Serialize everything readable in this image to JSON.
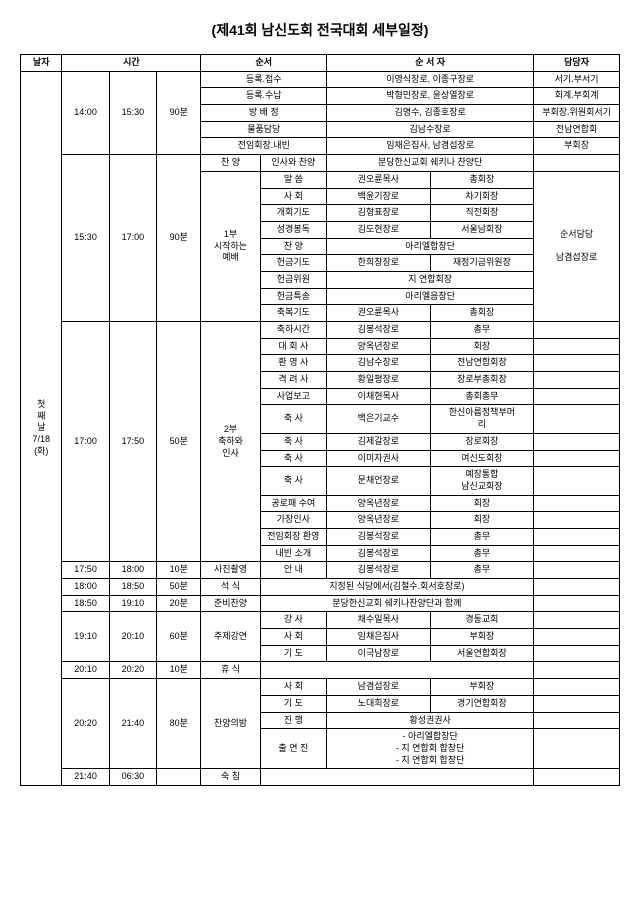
{
  "title": "(제41회 남신도회 전국대회 세부일정)",
  "headers": {
    "date": "날자",
    "time": "시간",
    "order": "순서",
    "presenter": "순 서 자",
    "manager": "담당자"
  },
  "day": "첫\n째\n날\n7/18\n(화)",
  "blocks": [
    {
      "t1": "14:00",
      "t2": "15:30",
      "t3": "90분",
      "rows": [
        {
          "ord2": "등록.접수",
          "p1": "이영식장로, 이종구장로",
          "mgr": "서기.부서기"
        },
        {
          "ord2": "등록.수납",
          "p1": "박형민장로, 윤상열장로",
          "mgr": "회계.부회계"
        },
        {
          "ord2": "방 배 정",
          "p1": "김명수, 김종호장로",
          "mgr": "부회장.위원회서기"
        },
        {
          "ord2": "물품담당",
          "p1": "김남수장로",
          "mgr": "전남연합회"
        },
        {
          "ord2": "전임회장.내빈",
          "p1": "임채은집사, 남겸섭장로",
          "mgr": "부회장"
        }
      ]
    },
    {
      "t1": "15:30",
      "t2": "17:00",
      "t3": "90분",
      "praise": {
        "ord1": "찬   양",
        "ord2": "인사와 찬양",
        "p1": "분당한신교회 쉐키나 찬양단"
      },
      "ord1": "1부\n시작하는\n예배",
      "rows": [
        {
          "ord2": "말    씀",
          "p1": "권오륜목사",
          "p2": "총회장"
        },
        {
          "ord2": "사    회",
          "p1": "백윤기장로",
          "p2": "차기회장"
        },
        {
          "ord2": "개회기도",
          "p1": "김형표장로",
          "p2": "직전회장"
        },
        {
          "ord2": "성경봉독",
          "p1": "김도현장로",
          "p2": "서울남회장"
        },
        {
          "ord2": "찬    양",
          "p1": "아리엘합창단",
          "p2": ""
        },
        {
          "ord2": "헌금기도",
          "p1": "한희창장로",
          "p2": "재정기금위원장"
        },
        {
          "ord2": "헌금위원",
          "p1": "지 연합회장",
          "p2": ""
        },
        {
          "ord2": "헌금특송",
          "p1": "아리엘음창단",
          "p2": ""
        },
        {
          "ord2": "축복기도",
          "p1": "권오륜목사",
          "p2": "총회장"
        }
      ],
      "mgr": "순서담당\n\n남겸섭장로"
    },
    {
      "t1": "17:00",
      "t2": "17:50",
      "t3": "50분",
      "ord1": "2부\n축하와\n인사",
      "rows": [
        {
          "ord2": "축하시간",
          "p1": "김봉석장로",
          "p2": "총무"
        },
        {
          "ord2": "대 회 사",
          "p1": "양옥년장로",
          "p2": "회장"
        },
        {
          "ord2": "환 영 사",
          "p1": "김남수장로",
          "p2": "전남연합회장"
        },
        {
          "ord2": "격 려 사",
          "p1": "황일평장로",
          "p2": "장로부총회장"
        },
        {
          "ord2": "사업보고",
          "p1": "이채현목사",
          "p2": "총회총무"
        },
        {
          "ord2": "축    사",
          "p1": "백은기교수",
          "p2": "한신아름정책부머\n리"
        },
        {
          "ord2": "축    사",
          "p1": "김제갈장로",
          "p2": "장로회장"
        },
        {
          "ord2": "축    사",
          "p1": "이미자권사",
          "p2": "여신도회장"
        },
        {
          "ord2": "축    사",
          "p1": "문채언장로",
          "p2": "예장통합\n남신교회장"
        },
        {
          "ord2": "공로패 수여",
          "p1": "양옥년장로",
          "p2": "회장"
        },
        {
          "ord2": "가장인사",
          "p1": "양옥년장로",
          "p2": "회장"
        },
        {
          "ord2": "전임회장 환영",
          "p1": "김봉석장로",
          "p2": "총무"
        },
        {
          "ord2": "내빈 소개",
          "p1": "김봉석장로",
          "p2": "총무"
        }
      ]
    },
    {
      "simple": true,
      "t1": "17:50",
      "t2": "18:00",
      "t3": "10분",
      "ord1": "사진촬영",
      "ord2": "안    내",
      "p1": "김봉석장로",
      "p2": "총무"
    },
    {
      "simple": true,
      "t1": "18:00",
      "t2": "18:50",
      "t3": "50분",
      "ord1": "석    식",
      "p1": "지정된 식당에서(김철수.회서호장로)"
    },
    {
      "simple": true,
      "t1": "18:50",
      "t2": "19:10",
      "t3": "20분",
      "ord1": "준비찬양",
      "p1": "분당한신교회 쉐키나찬양단과 함께"
    },
    {
      "t1": "19:10",
      "t2": "20:10",
      "t3": "60분",
      "ord1": "주제강연",
      "rows": [
        {
          "ord2": "강    사",
          "p1": "채수일목사",
          "p2": "경동교회"
        },
        {
          "ord2": "사    회",
          "p1": "임채은집사",
          "p2": "부회장"
        },
        {
          "ord2": "기    도",
          "p1": "이극남장로",
          "p2": "서울연합회장"
        }
      ]
    },
    {
      "simple": true,
      "t1": "20:10",
      "t2": "20:20",
      "t3": "10분",
      "ord1": "휴    식",
      "p1": ""
    },
    {
      "t1": "20:20",
      "t2": "21:40",
      "t3": "80분",
      "ord1": "찬양의밤",
      "rows": [
        {
          "ord2": "사    회",
          "p1": "남겸섭장로",
          "p2": "부회장"
        },
        {
          "ord2": "기    도",
          "p1": "노대희장로",
          "p2": "경기연합회장"
        },
        {
          "ord2": "진    행",
          "p1": "황성권권사",
          "p2": ""
        },
        {
          "ord2": "출 연 진",
          "p1": "- 아리엘합창단\n- 지 연합회 합창단\n- 지 연합회 합창단",
          "p2": ""
        }
      ]
    },
    {
      "simple": true,
      "t1": "21:40",
      "t2": "06:30",
      "t3": "",
      "ord1": "숙    침",
      "p1": ""
    }
  ]
}
